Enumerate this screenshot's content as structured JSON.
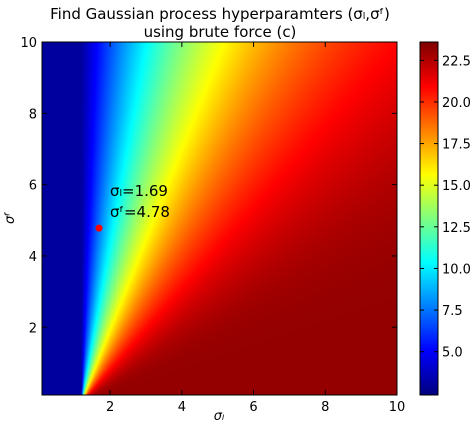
{
  "chart_data": {
    "type": "heatmap",
    "title_lines": [
      "Find Gaussian process hyperparamters (σₗ,σᶠ)",
      "using brute force (c)"
    ],
    "xlabel": "σₗ",
    "ylabel": "σᶠ",
    "xlim": [
      0.1,
      10
    ],
    "ylim": [
      0.1,
      10
    ],
    "x_ticks": [
      2,
      4,
      6,
      8,
      10
    ],
    "y_ticks": [
      2,
      4,
      6,
      8,
      10
    ],
    "colormap": "jet",
    "colorbar": {
      "vmin": 2.4,
      "vmax": 23.6,
      "ticks": [
        5.0,
        7.5,
        10.0,
        12.5,
        15.0,
        17.5,
        20.0,
        22.5
      ],
      "tick_labels": [
        "5.0",
        "7.5",
        "10.0",
        "12.5",
        "15.0",
        "17.5",
        "20.0",
        "22.5"
      ]
    },
    "marker": {
      "x": 1.69,
      "y": 4.78,
      "color": "#ff0000",
      "label_lines": [
        "σₗ=1.69",
        "σᶠ=4.78"
      ]
    }
  }
}
